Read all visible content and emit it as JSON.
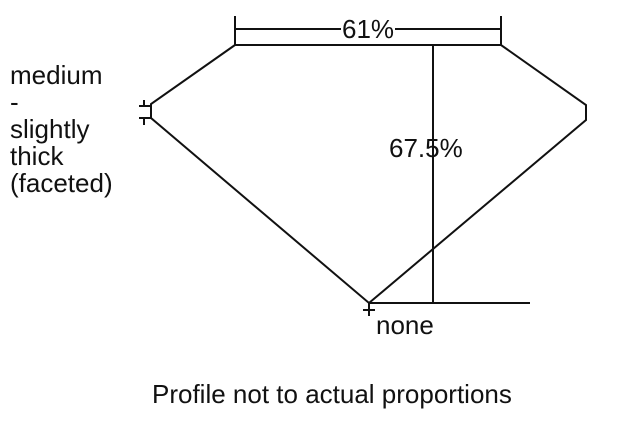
{
  "diagram": {
    "table_label": "61%",
    "depth_label": "67.5%",
    "girdle_label_lines": [
      "medium",
      "-",
      "slightly",
      "thick",
      "(faceted)"
    ],
    "culet_label": "none",
    "caption": "Profile not to actual proportions",
    "line_color": "#111111"
  }
}
